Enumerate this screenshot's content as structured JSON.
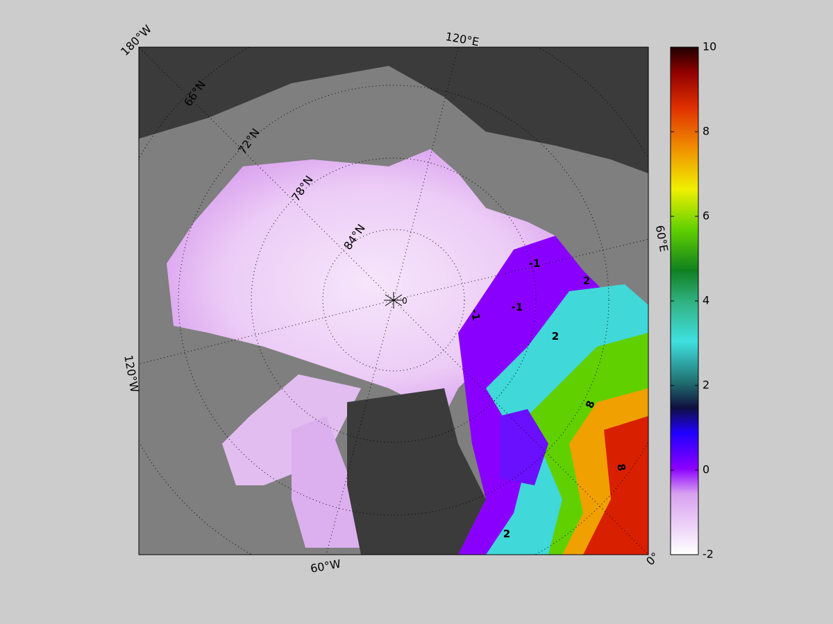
{
  "map": {
    "lon_labels": [
      "180°W",
      "120°E",
      "60°E",
      "0°",
      "60°W",
      "120°W"
    ],
    "lat_labels": [
      "66°N",
      "72°N",
      "78°N",
      "84°N"
    ],
    "contour_labels": [
      "-1",
      "-1",
      "-1",
      "2",
      "2",
      "2",
      "8",
      "8",
      "0"
    ]
  },
  "colorbar": {
    "lim": [
      -2,
      10
    ],
    "ticks": [
      -2,
      0,
      2,
      4,
      6,
      8,
      10
    ]
  }
}
